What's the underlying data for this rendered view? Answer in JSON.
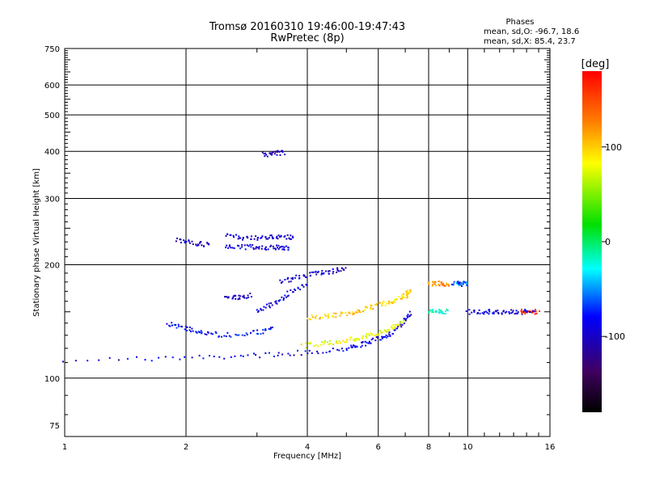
{
  "header": {
    "title": "Tromsø 20160310 19:46:00-19:47:43",
    "subtitle": "RwPretec (8p)"
  },
  "phases_box": {
    "heading": "Phases",
    "line_o": "mean, sd,O: -96.7, 18.6",
    "line_x": "mean, sd,X: 85.4, 23.7"
  },
  "colorbar": {
    "label": "[deg]",
    "ticks": [
      "100",
      "0",
      "-100"
    ],
    "tick_values": [
      100,
      0,
      -100
    ],
    "range": [
      -180,
      180
    ]
  },
  "chart_data": {
    "type": "scatter",
    "xlabel": "Frequency [MHz]",
    "ylabel": "Stationary phase Virtual Height [km]",
    "x_scale": "log",
    "y_scale": "log",
    "xlim": [
      1,
      16
    ],
    "ylim": [
      70,
      750
    ],
    "xticks": [
      1,
      2,
      4,
      6,
      8,
      10,
      16
    ],
    "xtick_labels": [
      "1",
      "2",
      "4",
      "6",
      "8",
      "10",
      "16"
    ],
    "yticks": [
      75,
      100,
      200,
      300,
      400,
      500,
      600,
      750
    ],
    "ytick_labels": [
      "75",
      "100",
      "200",
      "300",
      "400",
      "500",
      "600",
      "750"
    ],
    "grid": true,
    "trace_segments": [
      {
        "x": [
          1.0,
          2.0,
          3.0,
          4.0,
          5.0,
          5.5,
          6.0,
          6.5,
          6.9,
          7.2
        ],
        "y": [
          112,
          113,
          115,
          117,
          120,
          123,
          127,
          132,
          140,
          150
        ],
        "phase": -90
      },
      {
        "x": [
          3.9,
          4.5,
          5.0,
          5.5,
          6.0,
          6.5,
          7.0
        ],
        "y": [
          122,
          124,
          126,
          128,
          132,
          136,
          142
        ],
        "phase": 80
      },
      {
        "x": [
          4.0,
          4.5,
          5.0,
          5.5,
          6.0,
          6.5,
          7.0,
          7.2
        ],
        "y": [
          145,
          146,
          148,
          152,
          156,
          160,
          165,
          170
        ],
        "phase": 100
      },
      {
        "x": [
          1.8,
          2.0,
          2.2,
          2.5,
          3.0,
          3.3
        ],
        "y": [
          140,
          135,
          132,
          130,
          132,
          136
        ],
        "phase": -80
      },
      {
        "x": [
          3.0,
          3.3,
          3.6,
          4.0
        ],
        "y": [
          150,
          158,
          168,
          178
        ],
        "phase": -90
      },
      {
        "x": [
          3.4,
          3.8,
          4.2,
          4.6,
          5.0
        ],
        "y": [
          180,
          185,
          190,
          192,
          195
        ],
        "phase": -100
      },
      {
        "x": [
          1.9,
          2.1,
          2.3
        ],
        "y": [
          232,
          228,
          226
        ],
        "phase": -100
      },
      {
        "x": [
          2.5,
          2.8,
          3.1,
          3.4,
          3.7
        ],
        "y": [
          238,
          236,
          236,
          238,
          236
        ],
        "phase": -100
      },
      {
        "x": [
          2.5,
          2.8,
          3.1,
          3.4,
          3.6
        ],
        "y": [
          222,
          223,
          222,
          222,
          222
        ],
        "phase": -95
      },
      {
        "x": [
          2.5,
          2.7,
          2.9
        ],
        "y": [
          165,
          164,
          166
        ],
        "phase": -100
      },
      {
        "x": [
          3.1,
          3.3,
          3.5
        ],
        "y": [
          392,
          394,
          397
        ],
        "phase": -105
      },
      {
        "x": [
          8.0,
          8.5,
          9.0
        ],
        "y": [
          178,
          178,
          178
        ],
        "phase": 120
      },
      {
        "x": [
          9.2,
          9.6,
          10.0
        ],
        "y": [
          178,
          178,
          178
        ],
        "phase": -60
      },
      {
        "x": [
          8.0,
          8.5,
          8.9
        ],
        "y": [
          150,
          150,
          150
        ],
        "phase": -20
      },
      {
        "x": [
          10.0,
          11.0,
          12.0,
          13.0,
          14.5
        ],
        "y": [
          150,
          150,
          150,
          150,
          150
        ],
        "phase": -95
      },
      {
        "x": [
          13.5,
          14.2,
          15.0
        ],
        "y": [
          150,
          150,
          150
        ],
        "phase": 170
      }
    ]
  }
}
